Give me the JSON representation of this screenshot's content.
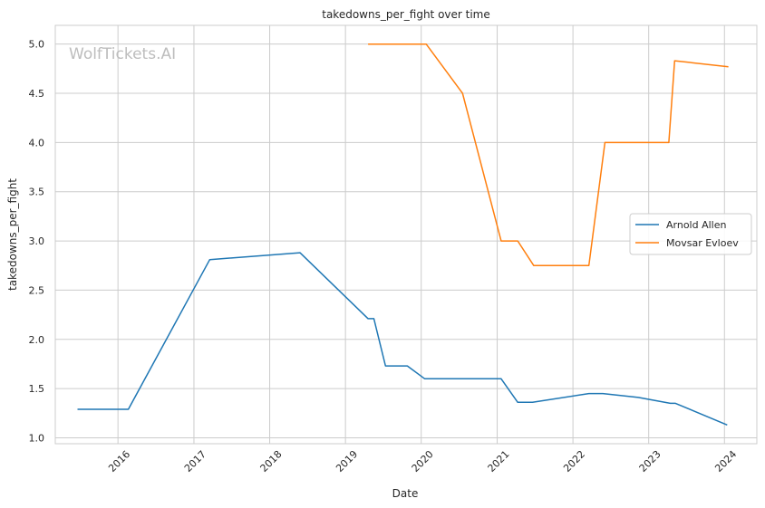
{
  "chart_data": {
    "type": "line",
    "title": "takedowns_per_fight over time",
    "xlabel": "Date",
    "ylabel": "takedowns_per_fight",
    "watermark": "WolfTickets.AI",
    "x_ticks": [
      "2016",
      "2017",
      "2018",
      "2019",
      "2020",
      "2021",
      "2022",
      "2023",
      "2024"
    ],
    "y_ticks": [
      "1.0",
      "1.5",
      "2.0",
      "2.5",
      "3.0",
      "3.5",
      "4.0",
      "4.5",
      "5.0"
    ],
    "xlim": [
      "2015-03-05",
      "2024-06-05"
    ],
    "ylim": [
      0.94,
      5.19
    ],
    "grid": true,
    "legend_position": "center-right",
    "series": [
      {
        "name": "Arnold Allen",
        "color": "#1f77b4",
        "points": [
          {
            "x": "2015-06-20",
            "y": 1.29
          },
          {
            "x": "2016-02-20",
            "y": 1.29
          },
          {
            "x": "2017-03-18",
            "y": 2.81
          },
          {
            "x": "2018-05-27",
            "y": 2.88
          },
          {
            "x": "2019-04-20",
            "y": 2.21
          },
          {
            "x": "2019-05-18",
            "y": 2.21
          },
          {
            "x": "2019-07-13",
            "y": 1.73
          },
          {
            "x": "2019-10-26",
            "y": 1.73
          },
          {
            "x": "2020-01-18",
            "y": 1.6
          },
          {
            "x": "2021-01-20",
            "y": 1.6
          },
          {
            "x": "2021-04-10",
            "y": 1.36
          },
          {
            "x": "2021-06-20",
            "y": 1.36
          },
          {
            "x": "2022-03-19",
            "y": 1.45
          },
          {
            "x": "2022-05-25",
            "y": 1.45
          },
          {
            "x": "2022-11-12",
            "y": 1.41
          },
          {
            "x": "2023-04-15",
            "y": 1.35
          },
          {
            "x": "2023-05-10",
            "y": 1.35
          },
          {
            "x": "2024-01-14",
            "y": 1.13
          }
        ]
      },
      {
        "name": "Movsar Evloev",
        "color": "#ff7f0e",
        "points": [
          {
            "x": "2019-04-20",
            "y": 5.0
          },
          {
            "x": "2020-01-25",
            "y": 5.0
          },
          {
            "x": "2020-07-18",
            "y": 4.5
          },
          {
            "x": "2021-01-20",
            "y": 3.0
          },
          {
            "x": "2021-04-10",
            "y": 3.0
          },
          {
            "x": "2021-06-26",
            "y": 2.75
          },
          {
            "x": "2022-03-19",
            "y": 2.75
          },
          {
            "x": "2022-06-04",
            "y": 4.0
          },
          {
            "x": "2023-04-08",
            "y": 4.0
          },
          {
            "x": "2023-05-06",
            "y": 4.83
          },
          {
            "x": "2024-01-20",
            "y": 4.77
          }
        ]
      }
    ]
  }
}
